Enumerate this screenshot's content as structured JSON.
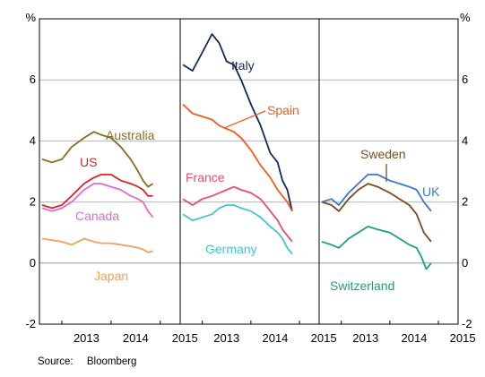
{
  "chart_data": {
    "type": "line",
    "y_unit": "%",
    "ylim": [
      -2,
      8
    ],
    "yticks": [
      -2,
      0,
      2,
      4,
      6
    ],
    "xticks": [
      "2013",
      "2014",
      "2015"
    ],
    "xlim": [
      2012.6,
      2015.35
    ],
    "grid": true,
    "source_label": "Source:",
    "source_value": "Bloomberg",
    "panels": [
      {
        "series": [
          {
            "name": "Australia",
            "color": "#8B6B1F",
            "x": [
              2012.6,
              2012.8,
              2013.0,
              2013.2,
              2013.45,
              2013.65,
              2013.8,
              2014.0,
              2014.2,
              2014.4,
              2014.55,
              2014.65,
              2014.75,
              2014.85
            ],
            "y": [
              3.4,
              3.3,
              3.4,
              3.8,
              4.1,
              4.3,
              4.2,
              4.1,
              3.8,
              3.4,
              3.0,
              2.7,
              2.5,
              2.6
            ]
          },
          {
            "name": "US",
            "color": "#D7262B",
            "x": [
              2012.6,
              2012.8,
              2013.0,
              2013.2,
              2013.45,
              2013.65,
              2013.8,
              2014.0,
              2014.2,
              2014.4,
              2014.55,
              2014.65,
              2014.75,
              2014.85
            ],
            "y": [
              1.9,
              1.8,
              1.9,
              2.2,
              2.6,
              2.8,
              2.9,
              2.9,
              2.7,
              2.6,
              2.5,
              2.4,
              2.2,
              2.2
            ]
          },
          {
            "name": "Canada",
            "color": "#E36ACD",
            "x": [
              2012.6,
              2012.8,
              2013.0,
              2013.2,
              2013.45,
              2013.65,
              2013.8,
              2014.0,
              2014.2,
              2014.4,
              2014.55,
              2014.65,
              2014.75,
              2014.85
            ],
            "y": [
              1.8,
              1.7,
              1.8,
              2.0,
              2.4,
              2.6,
              2.6,
              2.5,
              2.4,
              2.2,
              2.1,
              2.0,
              1.7,
              1.5
            ]
          },
          {
            "name": "Japan",
            "color": "#F4A05C",
            "x": [
              2012.6,
              2012.8,
              2013.0,
              2013.2,
              2013.45,
              2013.65,
              2013.8,
              2014.0,
              2014.2,
              2014.4,
              2014.55,
              2014.65,
              2014.75,
              2014.85
            ],
            "y": [
              0.8,
              0.75,
              0.7,
              0.6,
              0.8,
              0.7,
              0.65,
              0.65,
              0.6,
              0.55,
              0.5,
              0.45,
              0.35,
              0.4
            ]
          }
        ]
      },
      {
        "series": [
          {
            "name": "Italy",
            "color": "#0E2A57",
            "x": [
              2012.6,
              2012.8,
              2013.0,
              2013.2,
              2013.35,
              2013.5,
              2013.65,
              2013.8,
              2014.0,
              2014.2,
              2014.4,
              2014.55,
              2014.65,
              2014.75,
              2014.85
            ],
            "y": [
              6.5,
              6.3,
              6.9,
              7.5,
              7.2,
              6.6,
              6.5,
              6.0,
              5.2,
              4.5,
              3.6,
              3.3,
              2.7,
              2.4,
              1.7
            ]
          },
          {
            "name": "Spain",
            "color": "#F15A22",
            "x": [
              2012.6,
              2012.8,
              2013.0,
              2013.2,
              2013.35,
              2013.5,
              2013.65,
              2013.8,
              2014.0,
              2014.2,
              2014.4,
              2014.55,
              2014.65,
              2014.75,
              2014.85
            ],
            "y": [
              5.2,
              4.9,
              4.8,
              4.7,
              4.5,
              4.4,
              4.3,
              4.1,
              3.7,
              3.2,
              2.8,
              2.4,
              2.2,
              2.0,
              1.7
            ]
          },
          {
            "name": "France",
            "color": "#EC4E63",
            "x": [
              2012.6,
              2012.8,
              2013.0,
              2013.2,
              2013.35,
              2013.5,
              2013.65,
              2013.8,
              2014.0,
              2014.2,
              2014.4,
              2014.55,
              2014.65,
              2014.75,
              2014.85
            ],
            "y": [
              2.1,
              1.9,
              2.1,
              2.2,
              2.3,
              2.4,
              2.5,
              2.4,
              2.3,
              2.1,
              1.7,
              1.4,
              1.1,
              0.9,
              0.7
            ]
          },
          {
            "name": "Germany",
            "color": "#3EC7D0",
            "x": [
              2012.6,
              2012.8,
              2013.0,
              2013.2,
              2013.35,
              2013.5,
              2013.65,
              2013.8,
              2014.0,
              2014.2,
              2014.4,
              2014.55,
              2014.65,
              2014.75,
              2014.85
            ],
            "y": [
              1.6,
              1.4,
              1.5,
              1.6,
              1.8,
              1.9,
              1.9,
              1.8,
              1.7,
              1.5,
              1.2,
              1.0,
              0.8,
              0.5,
              0.3
            ]
          }
        ]
      },
      {
        "series": [
          {
            "name": "UK",
            "color": "#3A78C9",
            "x": [
              2012.6,
              2012.8,
              2012.95,
              2013.15,
              2013.35,
              2013.55,
              2013.75,
              2014.0,
              2014.2,
              2014.4,
              2014.55,
              2014.7,
              2014.85
            ],
            "y": [
              2.0,
              2.1,
              1.9,
              2.3,
              2.6,
              2.9,
              2.9,
              2.7,
              2.6,
              2.5,
              2.4,
              2.0,
              1.7
            ]
          },
          {
            "name": "Sweden",
            "color": "#7A4B22",
            "x": [
              2012.6,
              2012.8,
              2012.95,
              2013.15,
              2013.35,
              2013.55,
              2013.75,
              2014.0,
              2014.2,
              2014.4,
              2014.55,
              2014.7,
              2014.85
            ],
            "y": [
              2.0,
              1.9,
              1.7,
              2.1,
              2.4,
              2.6,
              2.5,
              2.3,
              2.1,
              1.9,
              1.6,
              1.0,
              0.7
            ]
          },
          {
            "name": "Switzerland",
            "color": "#1E9E7E",
            "x": [
              2012.6,
              2012.8,
              2012.95,
              2013.15,
              2013.35,
              2013.55,
              2013.75,
              2014.0,
              2014.2,
              2014.4,
              2014.55,
              2014.65,
              2014.75,
              2014.85
            ],
            "y": [
              0.7,
              0.6,
              0.5,
              0.8,
              1.0,
              1.2,
              1.1,
              1.0,
              0.8,
              0.6,
              0.5,
              0.2,
              -0.2,
              0.0
            ]
          }
        ]
      }
    ]
  }
}
